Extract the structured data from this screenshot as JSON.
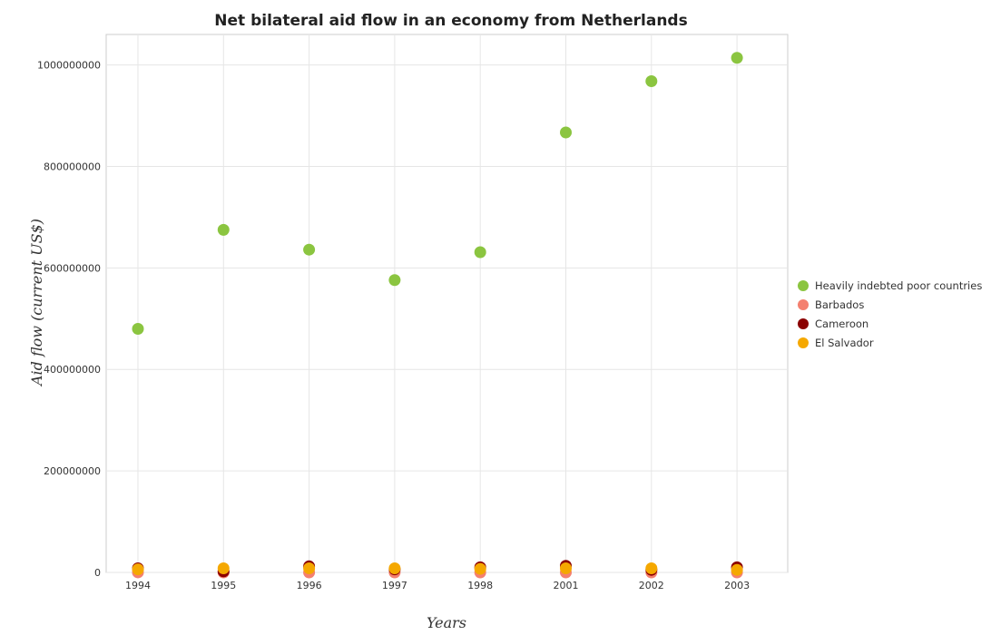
{
  "chart_data": {
    "type": "scatter",
    "title": "Net bilateral aid flow in an economy from Netherlands",
    "xlabel": "Years",
    "ylabel": "Aid flow (current US$)",
    "categories": [
      "1994",
      "1995",
      "1996",
      "1997",
      "1998",
      "2001",
      "2002",
      "2003"
    ],
    "ylim": [
      0,
      1060000000
    ],
    "yticks": [
      0,
      200000000,
      400000000,
      600000000,
      800000000,
      1000000000
    ],
    "ytick_labels": [
      "0",
      "200000000",
      "400000000",
      "600000000",
      "800000000",
      "1000000000"
    ],
    "grid": true,
    "legend_position": "right",
    "series": [
      {
        "name": "Heavily indebted poor countries",
        "color": "#8bc540",
        "values": [
          480000000,
          675000000,
          636000000,
          576000000,
          631000000,
          867000000,
          968000000,
          1014000000
        ]
      },
      {
        "name": "Barbados",
        "color": "#f4806f",
        "values": [
          100000,
          50000,
          30000,
          20000,
          40000,
          20000,
          10000,
          10000
        ]
      },
      {
        "name": "Cameroon",
        "color": "#8b0000",
        "values": [
          8000000,
          2000000,
          12000000,
          6000000,
          10000000,
          13000000,
          5000000,
          10000000
        ]
      },
      {
        "name": "El Salvador",
        "color": "#f5a800",
        "values": [
          6000000,
          8000000,
          8000000,
          8000000,
          7000000,
          8000000,
          8000000,
          5000000
        ]
      }
    ]
  }
}
